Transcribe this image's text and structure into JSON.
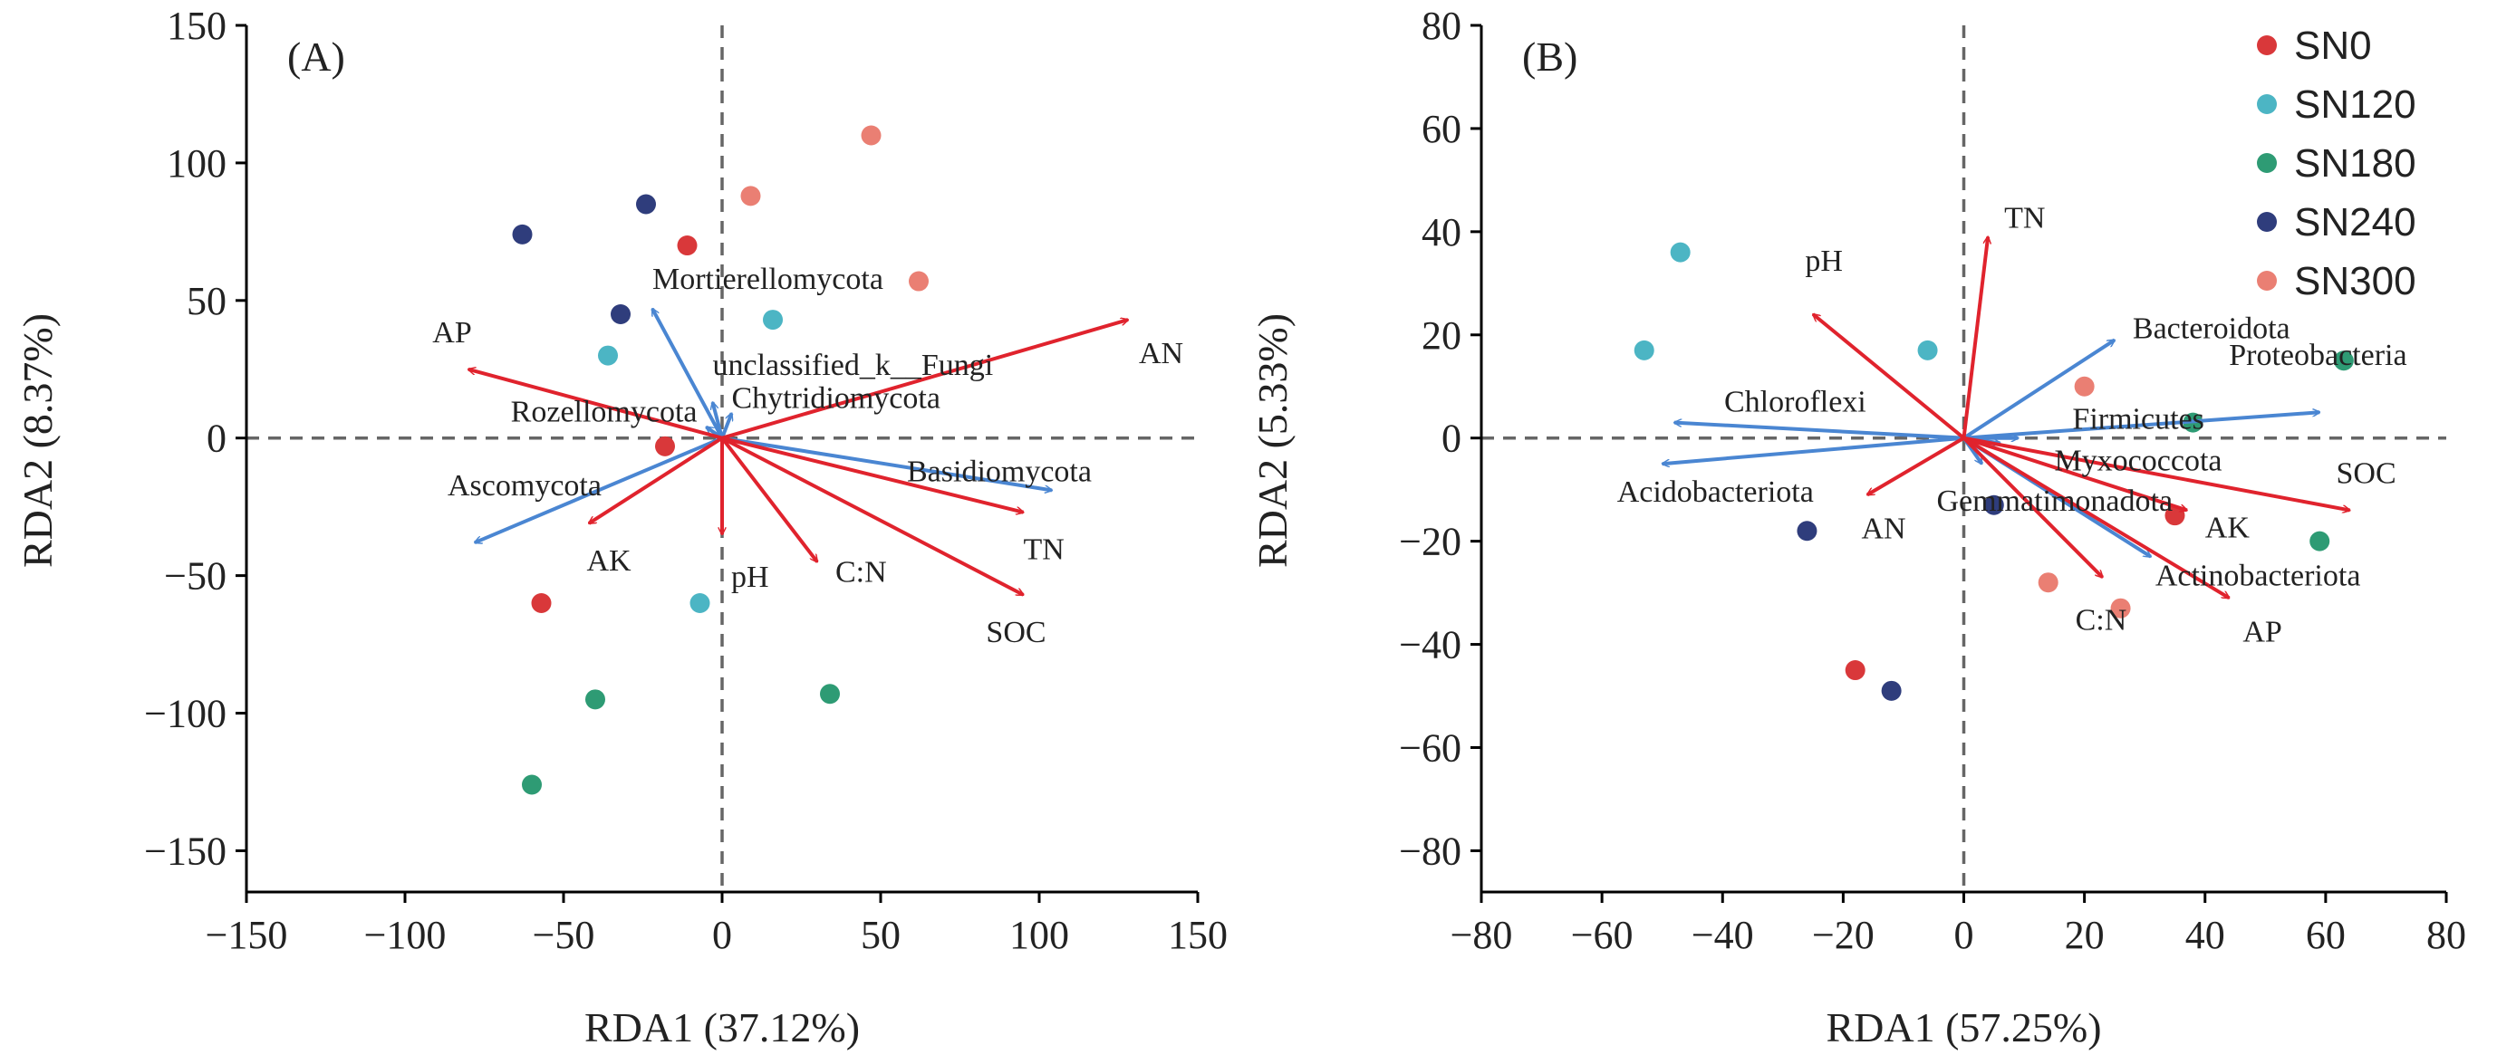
{
  "colors": {
    "SN0": "#d9383a",
    "SN120": "#4cb5c4",
    "SN180": "#2e9b74",
    "SN240": "#2f3d7c",
    "SN300": "#ea7f73",
    "env_arrow": "#e0232d",
    "taxa_arrow": "#4a86d2"
  },
  "legend": [
    {
      "group": "SN0",
      "label": "SN0"
    },
    {
      "group": "SN120",
      "label": "SN120"
    },
    {
      "group": "SN180",
      "label": "SN180"
    },
    {
      "group": "SN240",
      "label": "SN240"
    },
    {
      "group": "SN300",
      "label": "SN300"
    }
  ],
  "chart_data": [
    {
      "type": "scatter",
      "panel_label": "(A)",
      "xlabel": "RDA1 (37.12%)",
      "ylabel": "RDA2 (8.37%)",
      "xlim": [
        -150,
        150
      ],
      "ylim": [
        -165,
        150
      ],
      "xticks": [
        -150,
        -100,
        -50,
        0,
        50,
        100,
        150
      ],
      "yticks": [
        -150,
        -100,
        -50,
        0,
        50,
        100,
        150
      ],
      "points": [
        {
          "group": "SN0",
          "x": -11,
          "y": 70
        },
        {
          "group": "SN0",
          "x": -18,
          "y": -3
        },
        {
          "group": "SN0",
          "x": -57,
          "y": -60
        },
        {
          "group": "SN120",
          "x": -36,
          "y": 30
        },
        {
          "group": "SN120",
          "x": 16,
          "y": 43
        },
        {
          "group": "SN120",
          "x": -7,
          "y": -60
        },
        {
          "group": "SN180",
          "x": -40,
          "y": -95
        },
        {
          "group": "SN180",
          "x": -60,
          "y": -126
        },
        {
          "group": "SN180",
          "x": 34,
          "y": -93
        },
        {
          "group": "SN240",
          "x": -63,
          "y": 74
        },
        {
          "group": "SN240",
          "x": -24,
          "y": 85
        },
        {
          "group": "SN240",
          "x": -32,
          "y": 45
        },
        {
          "group": "SN300",
          "x": 47,
          "y": 110
        },
        {
          "group": "SN300",
          "x": 9,
          "y": 88
        },
        {
          "group": "SN300",
          "x": 62,
          "y": 57
        }
      ],
      "env_vectors": [
        {
          "label": "AN",
          "x": 128,
          "y": 43
        },
        {
          "label": "AP",
          "x": -80,
          "y": 25
        },
        {
          "label": "AK",
          "x": -42,
          "y": -31
        },
        {
          "label": "pH",
          "x": 0,
          "y": -35
        },
        {
          "label": "C:N",
          "x": 30,
          "y": -45
        },
        {
          "label": "TN",
          "x": 95,
          "y": -27
        },
        {
          "label": "SOC",
          "x": 95,
          "y": -57
        }
      ],
      "taxa_vectors": [
        {
          "label": "Mortierellomycota",
          "x": -22,
          "y": 47
        },
        {
          "label": "unclassified_k__Fungi",
          "x": -3,
          "y": 13
        },
        {
          "label": "Chytridiomycota",
          "x": 3,
          "y": 9
        },
        {
          "label": "Rozellomycota",
          "x": -5,
          "y": 4
        },
        {
          "label": "Ascomycota",
          "x": -78,
          "y": -38
        },
        {
          "label": "Basidiomycota",
          "x": 104,
          "y": -19
        }
      ]
    },
    {
      "type": "scatter",
      "panel_label": "(B)",
      "xlabel": "RDA1 (57.25%)",
      "ylabel": "RDA2 (5.33%)",
      "xlim": [
        -80,
        80
      ],
      "ylim": [
        -88,
        80
      ],
      "xticks": [
        -80,
        -60,
        -40,
        -20,
        0,
        20,
        40,
        60,
        80
      ],
      "yticks": [
        -80,
        -60,
        -40,
        -20,
        0,
        20,
        40,
        60,
        80
      ],
      "points": [
        {
          "group": "SN0",
          "x": -18,
          "y": -45
        },
        {
          "group": "SN0",
          "x": 35,
          "y": -15
        },
        {
          "group": "SN120",
          "x": -47,
          "y": 36
        },
        {
          "group": "SN120",
          "x": -53,
          "y": 17
        },
        {
          "group": "SN120",
          "x": -6,
          "y": 17
        },
        {
          "group": "SN180",
          "x": 63,
          "y": 15
        },
        {
          "group": "SN180",
          "x": 38,
          "y": 3
        },
        {
          "group": "SN180",
          "x": 59,
          "y": -20
        },
        {
          "group": "SN240",
          "x": -26,
          "y": -18
        },
        {
          "group": "SN240",
          "x": 5,
          "y": -13
        },
        {
          "group": "SN240",
          "x": -12,
          "y": -49
        },
        {
          "group": "SN300",
          "x": 20,
          "y": 10
        },
        {
          "group": "SN300",
          "x": 14,
          "y": -28
        },
        {
          "group": "SN300",
          "x": 26,
          "y": -33
        }
      ],
      "env_vectors": [
        {
          "label": "TN",
          "x": 4,
          "y": 39
        },
        {
          "label": "pH",
          "x": -25,
          "y": 24
        },
        {
          "label": "AN",
          "x": -16,
          "y": -11
        },
        {
          "label": "SOC",
          "x": 64,
          "y": -14
        },
        {
          "label": "AK",
          "x": 37,
          "y": -14
        },
        {
          "label": "C:N",
          "x": 23,
          "y": -27
        },
        {
          "label": "AP",
          "x": 44,
          "y": -31
        }
      ],
      "taxa_vectors": [
        {
          "label": "Bacteroidota",
          "x": 25,
          "y": 19
        },
        {
          "label": "Proteobacteria",
          "x": 59,
          "y": 5
        },
        {
          "label": "Chloroflexi",
          "x": -48,
          "y": 3
        },
        {
          "label": "Acidobacteriota",
          "x": -50,
          "y": -5
        },
        {
          "label": "Firmicutes",
          "x": 9,
          "y": 0
        },
        {
          "label": "Myxococcota",
          "x": 6,
          "y": -1
        },
        {
          "label": "Gemmatimonadota",
          "x": 3,
          "y": -5
        },
        {
          "label": "Actinobacteriota",
          "x": 31,
          "y": -23
        }
      ]
    }
  ]
}
